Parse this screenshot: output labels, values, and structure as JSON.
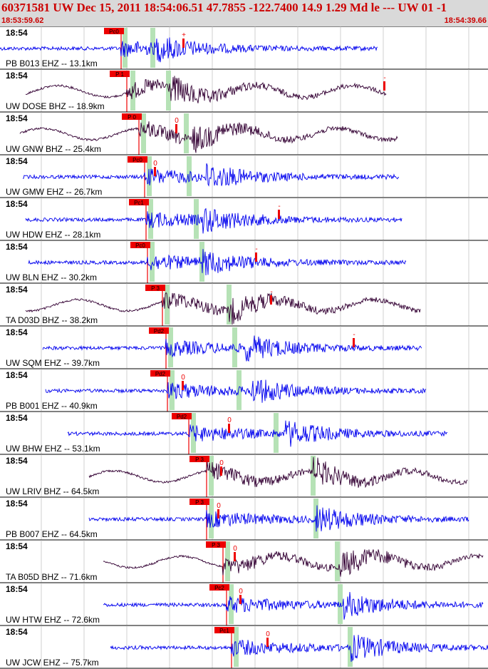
{
  "header": {
    "title": "60371581 UW Dec 15, 2011 18:54:06.51   47.7855 -122.7400 14.9 1.29 Md le --- UW 01  -1",
    "start_time": "18:53:59.62",
    "end_time": "18:54:39.66"
  },
  "colors": {
    "header_bg": "#d9d9d9",
    "header_text": "#cc0000",
    "trace_blue": "#0000ee",
    "trace_purple": "#330033",
    "pick_red": "#ee0000",
    "window_green": "#b6e2b6",
    "grid_gray": "#b0b0b0"
  },
  "panels": [
    {
      "time": "18:54",
      "station": "PB B013 EHZ -- 13.1km",
      "pick": "Pc0",
      "amp_label": "+",
      "trace": "blue"
    },
    {
      "time": "18:54",
      "station": "UW DOSE BHZ -- 18.9km",
      "pick": "P 1",
      "amp_label": "-",
      "trace": "purple"
    },
    {
      "time": "18:54",
      "station": "UW GNW BHZ -- 25.4km",
      "pick": "P 0",
      "amp_label": "0",
      "trace": "purple"
    },
    {
      "time": "18:54",
      "station": "UW GMW EHZ -- 26.7km",
      "pick": "Pc0",
      "amp_label": "0",
      "trace": "blue"
    },
    {
      "time": "18:54",
      "station": "UW HDW EHZ -- 28.1km",
      "pick": "Pc1",
      "amp_label": "-",
      "trace": "blue"
    },
    {
      "time": "18:54",
      "station": "UW BLN EHZ -- 30.2km",
      "pick": "Pc0",
      "amp_label": "-",
      "trace": "blue"
    },
    {
      "time": "18:54",
      "station": "TA D03D BHZ -- 38.2km",
      "pick": "P 3",
      "amp_label": "-",
      "trace": "purple"
    },
    {
      "time": "18:54",
      "station": "UW SQM EHZ -- 39.7km",
      "pick": "Pd2",
      "amp_label": "-",
      "trace": "blue"
    },
    {
      "time": "18:54",
      "station": "PB B001 EHZ -- 40.9km",
      "pick": "Pd2",
      "amp_label": "0",
      "trace": "blue"
    },
    {
      "time": "18:54",
      "station": "UW BHW EHZ -- 53.1km",
      "pick": "Pd2",
      "amp_label": "0",
      "trace": "blue"
    },
    {
      "time": "18:54",
      "station": "UW LRIV BHZ -- 64.5km",
      "pick": "P 3",
      "amp_label": "0",
      "trace": "purple"
    },
    {
      "time": "18:54",
      "station": "PB B007 EHZ -- 64.5km",
      "pick": "P 3",
      "amp_label": "0",
      "trace": "blue"
    },
    {
      "time": "18:54",
      "station": "TA B05D BHZ -- 71.6km",
      "pick": "P 3",
      "amp_label": "0",
      "trace": "purple"
    },
    {
      "time": "18:54",
      "station": "UW HTW EHZ -- 72.6km",
      "pick": "Pc2",
      "amp_label": "0",
      "trace": "blue"
    },
    {
      "time": "18:54",
      "station": "UW JCW EHZ -- 75.7km",
      "pick": "Pc1",
      "amp_label": "0",
      "trace": "blue"
    }
  ]
}
